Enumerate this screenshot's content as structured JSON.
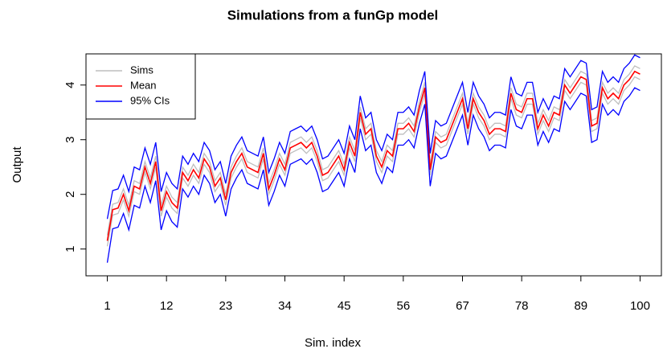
{
  "chart_data": {
    "type": "line",
    "title": "Simulations from a funGp model",
    "x_label": "Sim. index",
    "y_label": "Output",
    "x": [
      1,
      2,
      3,
      4,
      5,
      6,
      7,
      8,
      9,
      10,
      11,
      12,
      13,
      14,
      15,
      16,
      17,
      18,
      19,
      20,
      21,
      22,
      23,
      24,
      25,
      26,
      27,
      28,
      29,
      30,
      31,
      32,
      33,
      34,
      35,
      36,
      37,
      38,
      39,
      40,
      41,
      42,
      43,
      44,
      45,
      46,
      47,
      48,
      49,
      50,
      51,
      52,
      53,
      54,
      55,
      56,
      57,
      58,
      59,
      60,
      61,
      62,
      63,
      64,
      65,
      66,
      67,
      68,
      69,
      70,
      71,
      72,
      73,
      74,
      75,
      76,
      77,
      78,
      79,
      80,
      81,
      82,
      83,
      84,
      85,
      86,
      87,
      88,
      89,
      90,
      91,
      92,
      93,
      94,
      95,
      96,
      97,
      98,
      99,
      100
    ],
    "xlim": [
      -2.96,
      103.96
    ],
    "xticks": [
      1,
      12,
      23,
      34,
      45,
      56,
      67,
      78,
      89,
      100
    ],
    "ylim": [
      0.51,
      4.57
    ],
    "yticks": [
      1,
      2,
      3,
      4
    ],
    "legend": "top-left",
    "series": [
      {
        "name": "Sims",
        "color": "#bebebe",
        "values": [
          [
            1.25,
            1.82,
            1.85,
            2.1,
            1.8,
            2.25,
            2.2,
            2.6,
            2.3,
            2.7,
            1.8,
            2.15,
            1.95,
            1.85,
            2.5,
            2.35,
            2.55,
            2.4,
            2.75,
            2.6,
            2.25,
            2.4,
            2.0,
            2.5,
            2.7,
            2.85,
            2.6,
            2.55,
            2.5,
            2.85,
            2.2,
            2.45,
            2.75,
            2.55,
            2.95,
            3.0,
            3.05,
            2.95,
            3.05,
            2.8,
            2.45,
            2.5,
            2.65,
            2.8,
            2.55,
            3.05,
            2.8,
            3.6,
            3.2,
            3.3,
            2.8,
            2.6,
            2.9,
            2.8,
            3.3,
            3.3,
            3.4,
            3.25,
            3.7,
            4.05,
            2.55,
            3.15,
            3.05,
            3.1,
            3.35,
            3.6,
            3.85,
            3.3,
            3.85,
            3.6,
            3.45,
            3.2,
            3.3,
            3.3,
            3.25,
            3.95,
            3.65,
            3.6,
            3.85,
            3.85,
            3.3,
            3.55,
            3.35,
            3.6,
            3.55,
            4.1,
            3.95,
            4.1,
            4.25,
            4.2,
            3.35,
            3.4,
            4.05,
            3.85,
            3.95,
            3.85,
            4.1,
            4.2,
            4.35,
            4.3
          ],
          [
            1.05,
            1.62,
            1.65,
            1.9,
            1.6,
            2.05,
            2.0,
            2.4,
            2.1,
            2.5,
            1.6,
            1.95,
            1.75,
            1.65,
            2.3,
            2.15,
            2.35,
            2.2,
            2.55,
            2.4,
            2.05,
            2.2,
            1.8,
            2.3,
            2.5,
            2.65,
            2.4,
            2.35,
            2.3,
            2.65,
            2.0,
            2.25,
            2.55,
            2.35,
            2.75,
            2.8,
            2.85,
            2.75,
            2.85,
            2.6,
            2.25,
            2.3,
            2.45,
            2.6,
            2.35,
            2.85,
            2.6,
            3.4,
            3.0,
            3.1,
            2.6,
            2.4,
            2.7,
            2.6,
            3.1,
            3.1,
            3.2,
            3.05,
            3.5,
            3.85,
            2.35,
            2.95,
            2.85,
            2.9,
            3.15,
            3.4,
            3.65,
            3.1,
            3.65,
            3.4,
            3.25,
            3.0,
            3.1,
            3.1,
            3.05,
            3.75,
            3.45,
            3.4,
            3.65,
            3.65,
            3.1,
            3.35,
            3.15,
            3.4,
            3.35,
            3.9,
            3.75,
            3.9,
            4.05,
            4.0,
            3.15,
            3.2,
            3.85,
            3.65,
            3.75,
            3.65,
            3.9,
            4.0,
            4.15,
            4.1
          ]
        ]
      },
      {
        "name": "Mean",
        "color": "#ff0000",
        "values": [
          1.15,
          1.72,
          1.75,
          2.0,
          1.7,
          2.15,
          2.1,
          2.5,
          2.2,
          2.6,
          1.7,
          2.05,
          1.85,
          1.75,
          2.4,
          2.25,
          2.45,
          2.3,
          2.65,
          2.5,
          2.15,
          2.3,
          1.9,
          2.4,
          2.6,
          2.75,
          2.5,
          2.45,
          2.4,
          2.75,
          2.1,
          2.35,
          2.65,
          2.45,
          2.85,
          2.9,
          2.95,
          2.85,
          2.95,
          2.7,
          2.35,
          2.4,
          2.55,
          2.7,
          2.45,
          2.95,
          2.7,
          3.5,
          3.1,
          3.2,
          2.7,
          2.5,
          2.8,
          2.7,
          3.2,
          3.2,
          3.3,
          3.15,
          3.6,
          3.95,
          2.45,
          3.05,
          2.95,
          3.0,
          3.25,
          3.5,
          3.75,
          3.2,
          3.75,
          3.5,
          3.35,
          3.1,
          3.2,
          3.2,
          3.15,
          3.85,
          3.55,
          3.5,
          3.75,
          3.75,
          3.2,
          3.45,
          3.25,
          3.5,
          3.45,
          4.0,
          3.85,
          4.0,
          4.15,
          4.1,
          3.25,
          3.3,
          3.95,
          3.75,
          3.85,
          3.75,
          4.0,
          4.1,
          4.25,
          4.2
        ]
      },
      {
        "name": "95% CIs",
        "color": "#0000ff",
        "values": [
          [
            0.75,
            1.37,
            1.4,
            1.65,
            1.35,
            1.8,
            1.75,
            2.15,
            1.85,
            2.25,
            1.35,
            1.7,
            1.5,
            1.4,
            2.1,
            1.95,
            2.15,
            2.0,
            2.35,
            2.2,
            1.85,
            2.0,
            1.6,
            2.1,
            2.3,
            2.45,
            2.2,
            2.15,
            2.1,
            2.45,
            1.8,
            2.05,
            2.35,
            2.15,
            2.55,
            2.6,
            2.65,
            2.55,
            2.65,
            2.4,
            2.05,
            2.1,
            2.25,
            2.4,
            2.15,
            2.65,
            2.4,
            3.2,
            2.8,
            2.9,
            2.4,
            2.2,
            2.5,
            2.4,
            2.9,
            2.9,
            3.0,
            2.85,
            3.3,
            3.65,
            2.15,
            2.75,
            2.65,
            2.7,
            2.95,
            3.2,
            3.45,
            2.9,
            3.45,
            3.2,
            3.05,
            2.8,
            2.9,
            2.9,
            2.85,
            3.55,
            3.25,
            3.2,
            3.45,
            3.45,
            2.9,
            3.15,
            2.95,
            3.2,
            3.15,
            3.7,
            3.55,
            3.7,
            3.85,
            3.8,
            2.95,
            3.0,
            3.65,
            3.45,
            3.55,
            3.45,
            3.7,
            3.8,
            3.95,
            3.9
          ],
          [
            1.55,
            2.07,
            2.1,
            2.35,
            2.05,
            2.5,
            2.45,
            2.85,
            2.55,
            2.95,
            2.05,
            2.4,
            2.2,
            2.1,
            2.7,
            2.55,
            2.75,
            2.6,
            2.95,
            2.8,
            2.45,
            2.6,
            2.2,
            2.7,
            2.9,
            3.05,
            2.8,
            2.75,
            2.7,
            3.05,
            2.4,
            2.65,
            2.95,
            2.75,
            3.15,
            3.2,
            3.25,
            3.15,
            3.25,
            3.0,
            2.65,
            2.7,
            2.85,
            3.0,
            2.75,
            3.25,
            3.0,
            3.8,
            3.4,
            3.5,
            3.0,
            2.8,
            3.1,
            3.0,
            3.5,
            3.5,
            3.6,
            3.45,
            3.9,
            4.25,
            2.75,
            3.35,
            3.25,
            3.3,
            3.55,
            3.8,
            4.05,
            3.5,
            4.05,
            3.8,
            3.65,
            3.4,
            3.5,
            3.5,
            3.45,
            4.15,
            3.85,
            3.8,
            4.05,
            4.05,
            3.5,
            3.75,
            3.55,
            3.8,
            3.75,
            4.3,
            4.15,
            4.3,
            4.45,
            4.4,
            3.55,
            3.6,
            4.25,
            4.05,
            4.15,
            4.05,
            4.3,
            4.4,
            4.55,
            4.5
          ]
        ]
      }
    ]
  }
}
